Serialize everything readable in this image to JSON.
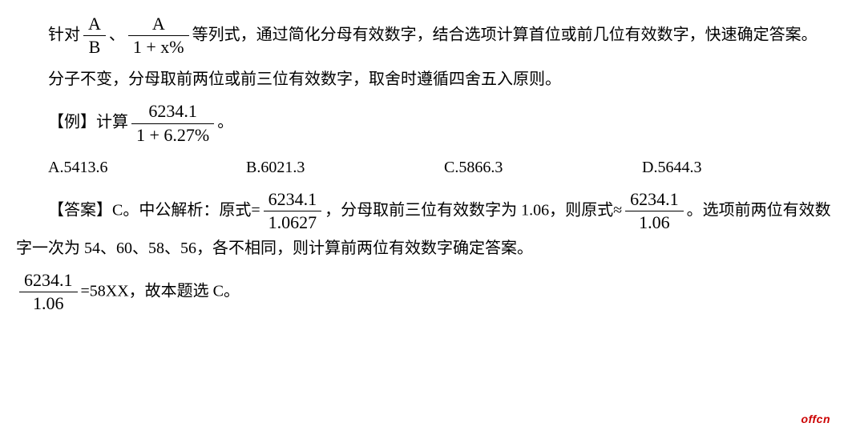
{
  "p1_a": "针对",
  "frac1": {
    "num": "A",
    "den": "B"
  },
  "p1_b": "、",
  "frac2": {
    "num": "A",
    "den": "1 + x%"
  },
  "p1_c": "等列式，通过简化分母有效数字，结合选项计算首位或前几位有效数字，快速确定答案。",
  "p2": "分子不变，分母取前两位或前三位有效数字，取舍时遵循四舍五入原则。",
  "p3_a": "【例】计算",
  "frac3": {
    "num": "6234.1",
    "den": "1 + 6.27%"
  },
  "p3_b": "。",
  "options": {
    "a": "A.5413.6",
    "b": "B.6021.3",
    "c": "C.5866.3",
    "d": "D.5644.3"
  },
  "p5_a": "【答案】C。中公解析：原式=",
  "frac4": {
    "num": "6234.1",
    "den": "1.0627"
  },
  "p5_b": "，分母取前三位有效数字为 1.06，则原式≈",
  "frac5": {
    "num": "6234.1",
    "den": "1.06"
  },
  "p5_c": "。选项前两位有效数字一次为 54、60、58、56，各不相同，则计算前两位有效数字确定答案。",
  "frac6": {
    "num": "6234.1",
    "den": "1.06"
  },
  "p6_b": "=58XX，故本题选 C。",
  "watermark": "offcn"
}
